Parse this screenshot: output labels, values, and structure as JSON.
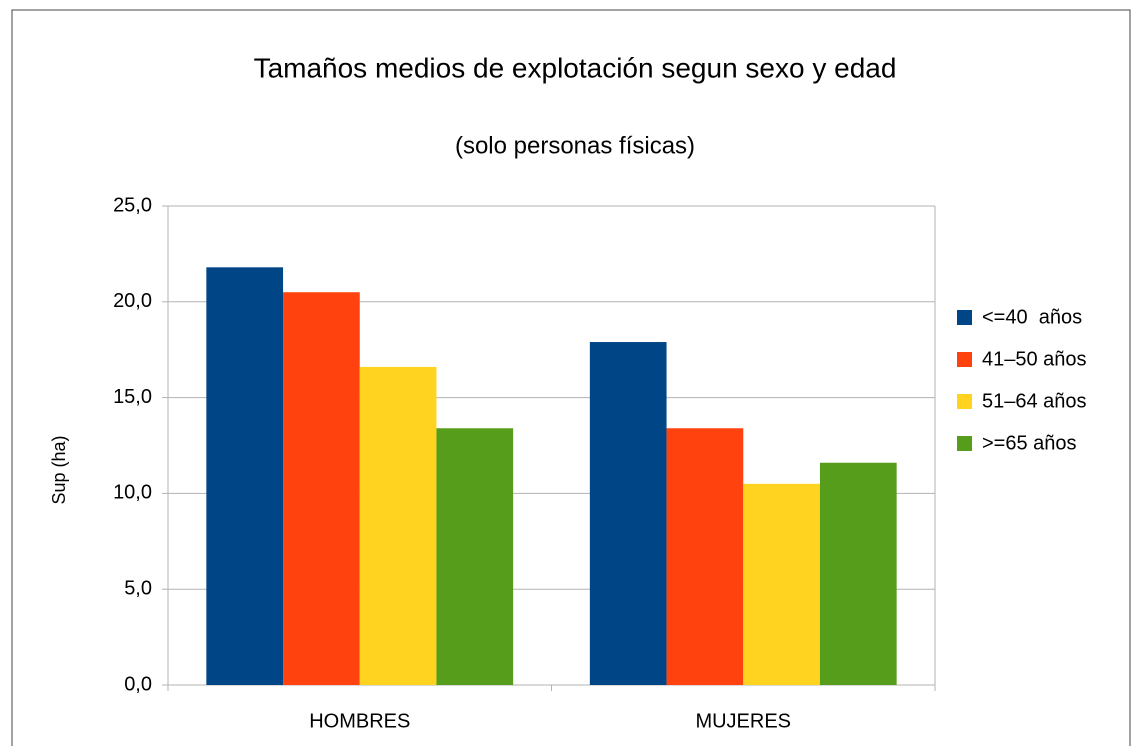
{
  "chart_data": {
    "type": "bar",
    "title": "Tamaños medios de explotación segun sexo y edad",
    "subtitle": "(solo personas físicas)",
    "y_label": "Sup (ha)",
    "categories": [
      "HOMBRES",
      "MUJERES"
    ],
    "series": [
      {
        "name": "<=40  años",
        "color": "#004586",
        "values": [
          21.8,
          17.9
        ]
      },
      {
        "name": "41–50 años",
        "color": "#ff420e",
        "values": [
          20.5,
          13.4
        ]
      },
      {
        "name": "51–64 años",
        "color": "#ffd320",
        "values": [
          16.6,
          10.5
        ]
      },
      {
        "name": ">=65 años",
        "color": "#579d1c",
        "values": [
          13.4,
          11.6
        ]
      }
    ],
    "ylim": [
      0,
      25
    ],
    "yticks": [
      {
        "value": 0,
        "label": "0,0"
      },
      {
        "value": 5,
        "label": "5,0"
      },
      {
        "value": 10,
        "label": "10,0"
      },
      {
        "value": 15,
        "label": "15,0"
      },
      {
        "value": 20,
        "label": "20,0"
      },
      {
        "value": 25,
        "label": "25,0"
      }
    ],
    "grid": true,
    "legend": "right"
  }
}
